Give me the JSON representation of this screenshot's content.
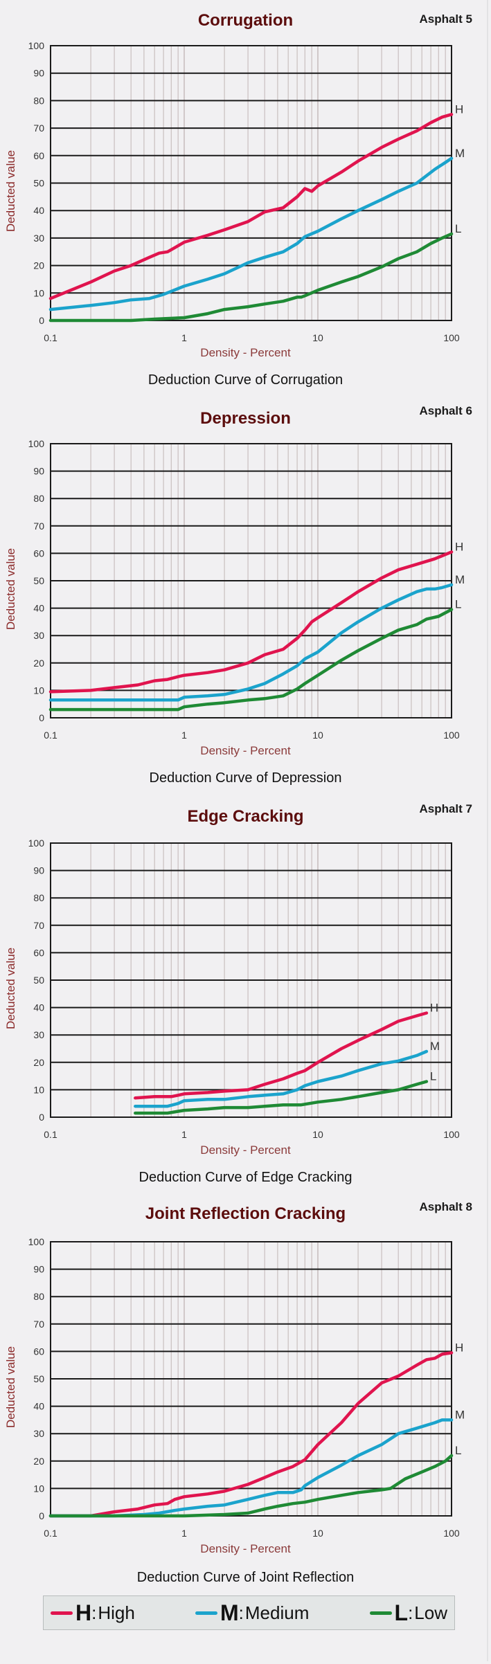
{
  "colors": {
    "high": "#e0144e",
    "medium": "#1ba3cc",
    "low": "#1f8a35",
    "grid_major": "#1a1a1a",
    "grid_minor": "#c9bfbf"
  },
  "legend": {
    "items": [
      {
        "key": "H",
        "sep": ":",
        "label": "High",
        "series": "high"
      },
      {
        "key": "M",
        "sep": ":",
        "label": "Medium",
        "series": "medium"
      },
      {
        "key": "L",
        "sep": " :",
        "label": "Low",
        "series": "low"
      }
    ]
  },
  "chart_data": [
    {
      "type": "line",
      "title": "Corrugation",
      "code": "Asphalt 5",
      "caption": "Deduction Curve of Corrugation",
      "xlabel": "Density - Percent",
      "ylabel": "Deducted value",
      "xscale": "log",
      "xlim": [
        0.1,
        100
      ],
      "ylim": [
        0,
        100
      ],
      "xticks": [
        "0.1",
        "1",
        "10",
        "100"
      ],
      "yticks": [
        "0",
        "10",
        "20",
        "30",
        "40",
        "50",
        "60",
        "70",
        "80",
        "90",
        "100"
      ],
      "grid": true,
      "series": [
        {
          "name": "H",
          "key": "high",
          "x": [
            0.1,
            0.2,
            0.3,
            0.4,
            0.55,
            0.65,
            0.75,
            0.85,
            1,
            1.5,
            2,
            3,
            4,
            5.5,
            7,
            8,
            9,
            10,
            15,
            20,
            30,
            40,
            55,
            70,
            85,
            100
          ],
          "y": [
            8,
            14,
            18,
            20,
            23,
            24.5,
            25,
            26.5,
            28.5,
            31,
            33,
            36,
            39.5,
            41,
            45,
            48,
            47,
            49,
            54,
            58,
            63,
            66,
            69,
            72,
            74,
            75
          ]
        },
        {
          "name": "M",
          "key": "medium",
          "x": [
            0.1,
            0.2,
            0.3,
            0.4,
            0.55,
            0.7,
            1,
            1.5,
            2,
            3,
            4,
            5.5,
            7,
            8,
            10,
            15,
            20,
            30,
            40,
            55,
            75,
            90,
            100
          ],
          "y": [
            4,
            5.5,
            6.5,
            7.5,
            8,
            9.5,
            12.5,
            15,
            17,
            21,
            23,
            25,
            28,
            30.5,
            32.5,
            37,
            40,
            44,
            47,
            50,
            55,
            57.5,
            59
          ]
        },
        {
          "name": "L",
          "key": "low",
          "x": [
            0.1,
            0.2,
            0.4,
            0.6,
            1,
            1.5,
            2,
            3,
            4,
            5.5,
            7,
            7.5,
            8,
            10,
            15,
            20,
            30,
            40,
            55,
            70,
            85,
            100
          ],
          "y": [
            0,
            0,
            0,
            0.5,
            1,
            2.5,
            4,
            5,
            6,
            7,
            8.5,
            8.5,
            9,
            11,
            14,
            16,
            19.5,
            22.5,
            25,
            28,
            30,
            31.5
          ]
        }
      ]
    },
    {
      "type": "line",
      "title": "Depression",
      "code": "Asphalt 6",
      "caption": "Deduction Curve of Depression",
      "xlabel": "Density - Percent",
      "ylabel": "Deducted value",
      "xscale": "log",
      "xlim": [
        0.1,
        100
      ],
      "ylim": [
        0,
        100
      ],
      "xticks": [
        "0.1",
        "1",
        "10",
        "100"
      ],
      "yticks": [
        "0",
        "10",
        "20",
        "30",
        "40",
        "50",
        "60",
        "70",
        "80",
        "90",
        "100"
      ],
      "grid": true,
      "series": [
        {
          "name": "H",
          "key": "high",
          "x": [
            0.1,
            0.2,
            0.3,
            0.45,
            0.6,
            0.75,
            0.9,
            1,
            1.5,
            2,
            3,
            4,
            5.5,
            7,
            8,
            9,
            10,
            15,
            20,
            30,
            40,
            55,
            75,
            100
          ],
          "y": [
            9.5,
            10,
            11,
            12,
            13.5,
            14,
            15,
            15.5,
            16.5,
            17.5,
            20,
            23,
            25,
            29,
            32,
            35,
            36.5,
            42,
            46,
            51,
            54,
            56,
            58,
            60.5
          ]
        },
        {
          "name": "M",
          "key": "medium",
          "x": [
            0.1,
            0.5,
            0.9,
            1,
            1.5,
            2,
            3,
            4,
            5.5,
            7,
            8,
            10,
            15,
            20,
            30,
            40,
            55,
            65,
            75,
            85,
            100
          ],
          "y": [
            6.5,
            6.5,
            6.5,
            7.5,
            8,
            8.5,
            10.5,
            12.5,
            16,
            19,
            21.5,
            24,
            31,
            35,
            40,
            43,
            46,
            47,
            47,
            47.5,
            48.5
          ]
        },
        {
          "name": "L",
          "key": "low",
          "x": [
            0.1,
            0.5,
            0.9,
            1,
            1.5,
            2,
            3,
            4,
            5.5,
            7,
            8,
            10,
            15,
            20,
            30,
            40,
            55,
            65,
            80,
            100
          ],
          "y": [
            3,
            3,
            3,
            4,
            5,
            5.5,
            6.5,
            7,
            8,
            10.5,
            12.5,
            15.5,
            21,
            24.5,
            29,
            32,
            34,
            36,
            37,
            39.5
          ]
        }
      ]
    },
    {
      "type": "line",
      "title": "Edge Cracking",
      "code": "Asphalt 7",
      "caption": "Deduction Curve of Edge Cracking",
      "xlabel": "Density - Percent",
      "ylabel": "Deducted value",
      "xscale": "log",
      "xlim": [
        0.1,
        100
      ],
      "ylim": [
        0,
        100
      ],
      "xticks": [
        "0.1",
        "1",
        "10",
        "100"
      ],
      "yticks": [
        "0",
        "10",
        "20",
        "30",
        "40",
        "50",
        "60",
        "70",
        "80",
        "90",
        "100"
      ],
      "grid": true,
      "series": [
        {
          "name": "H",
          "key": "high",
          "x": [
            0.43,
            0.6,
            0.8,
            0.9,
            1,
            1.5,
            2,
            3,
            4,
            5.5,
            7,
            8,
            10,
            15,
            20,
            30,
            40,
            55,
            65
          ],
          "y": [
            7,
            7.5,
            7.5,
            8,
            8.5,
            9,
            9.5,
            10,
            12,
            14,
            16,
            17,
            20,
            25,
            28,
            32,
            35,
            37,
            38
          ]
        },
        {
          "name": "M",
          "key": "medium",
          "x": [
            0.43,
            0.6,
            0.75,
            0.9,
            1,
            1.5,
            2,
            3,
            4,
            5.5,
            7,
            8,
            10,
            15,
            20,
            30,
            40,
            55,
            65
          ],
          "y": [
            4,
            4,
            4,
            5,
            6,
            6.5,
            6.5,
            7.5,
            8,
            8.5,
            10,
            11.5,
            13,
            15,
            17,
            19.5,
            20.5,
            22.5,
            24
          ]
        },
        {
          "name": "L",
          "key": "low",
          "x": [
            0.43,
            0.6,
            0.75,
            1,
            1.5,
            2,
            3,
            4,
            5.5,
            7.5,
            10,
            15,
            20,
            30,
            40,
            55,
            65
          ],
          "y": [
            1.5,
            1.5,
            1.5,
            2.5,
            3,
            3.5,
            3.5,
            4,
            4.5,
            4.5,
            5.5,
            6.5,
            7.5,
            9,
            10,
            12,
            13
          ]
        }
      ]
    },
    {
      "type": "line",
      "title": "Joint Reflection Cracking",
      "code": "Asphalt 8",
      "caption": "Deduction Curve of Joint Reflection",
      "xlabel": "Density - Percent",
      "ylabel": "Deducted value",
      "xscale": "log",
      "xlim": [
        0.1,
        100
      ],
      "ylim": [
        0,
        100
      ],
      "xticks": [
        "0.1",
        "1",
        "10",
        "100"
      ],
      "yticks": [
        "0",
        "10",
        "20",
        "30",
        "40",
        "50",
        "60",
        "70",
        "80",
        "90",
        "100"
      ],
      "grid": true,
      "series": [
        {
          "name": "H",
          "key": "high",
          "x": [
            0.1,
            0.2,
            0.3,
            0.45,
            0.6,
            0.75,
            0.85,
            1,
            1.5,
            2,
            3,
            4,
            5,
            6.5,
            8,
            10,
            15,
            20,
            30,
            40,
            55,
            65,
            75,
            85,
            100
          ],
          "y": [
            0,
            0,
            1.5,
            2.5,
            4,
            4.5,
            6,
            7,
            8,
            9,
            11.5,
            14,
            16,
            18,
            20.5,
            26,
            34,
            41,
            48.5,
            51,
            55,
            57,
            57.5,
            59,
            59.5
          ]
        },
        {
          "name": "M",
          "key": "medium",
          "x": [
            0.1,
            0.3,
            0.5,
            0.65,
            0.85,
            1,
            1.5,
            2,
            3,
            4,
            5,
            6.5,
            7.5,
            8,
            10,
            15,
            20,
            30,
            40,
            55,
            75,
            85,
            100
          ],
          "y": [
            0,
            0,
            0.5,
            1,
            2,
            2.5,
            3.5,
            4,
            6,
            7.5,
            8.5,
            8.5,
            9.5,
            11,
            14,
            18.5,
            22,
            26,
            30,
            32,
            34,
            35,
            35
          ]
        },
        {
          "name": "L",
          "key": "low",
          "x": [
            0.1,
            0.5,
            1,
            2,
            3,
            4,
            5,
            6.5,
            8,
            10,
            15,
            20,
            30,
            35,
            45,
            60,
            75,
            90,
            100
          ],
          "y": [
            0,
            0,
            0,
            0.5,
            1,
            2.5,
            3.5,
            4.5,
            5,
            6,
            7.5,
            8.5,
            9.5,
            10,
            13.5,
            16,
            18,
            20,
            22
          ]
        }
      ]
    }
  ]
}
